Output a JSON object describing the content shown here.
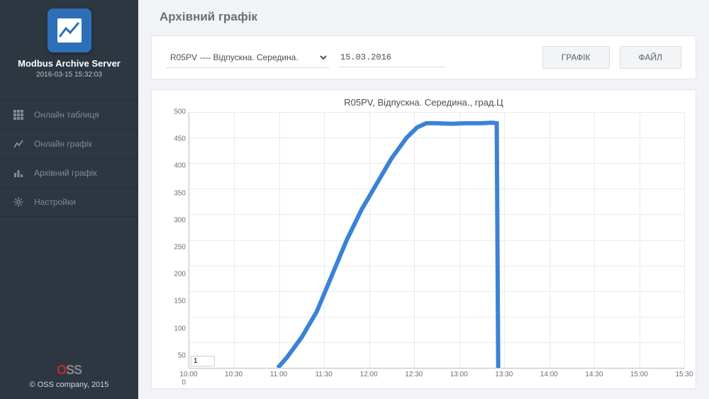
{
  "app": {
    "title": "Modbus Archive Server",
    "timestamp": "2016-03-15 15:32:03"
  },
  "sidebar": {
    "items": [
      {
        "label": "Онлайн таблиця",
        "icon": "grid-icon"
      },
      {
        "label": "Онлайн графік",
        "icon": "trend-icon"
      },
      {
        "label": "Архівний графік",
        "icon": "bars-icon"
      },
      {
        "label": "Настройки",
        "icon": "gear-icon"
      }
    ],
    "footer": "© OSS company, 2015"
  },
  "page": {
    "title": "Архівний графік"
  },
  "controls": {
    "sensor_selected": "R05PV ---- Відпускна. Середина.",
    "date": "15.03.2016",
    "btn_chart": "ГРАФІК",
    "btn_file": "ФАЙЛ"
  },
  "chart": {
    "title": "R05PV, Відпускна. Середина., град.Ц",
    "type": "line",
    "line_color": "#3b82d6",
    "line_width": 2,
    "grid_color": "#e8eaed",
    "axis_color": "#b8bec6",
    "tick_fontsize": 10,
    "tick_color": "#6a6f75",
    "background_color": "#ffffff",
    "x": {
      "min_minutes": 600,
      "max_minutes": 930,
      "ticks": [
        "10:00",
        "10:30",
        "11:00",
        "11:30",
        "12:00",
        "12:30",
        "13:00",
        "13:30",
        "14:00",
        "14:30",
        "15:00",
        "15:30"
      ]
    },
    "y": {
      "min": 0,
      "max": 500,
      "step": 50,
      "ticks": [
        0,
        50,
        100,
        150,
        200,
        250,
        300,
        350,
        400,
        450,
        500
      ]
    },
    "series": [
      {
        "t": 659,
        "v": 0
      },
      {
        "t": 665,
        "v": 20
      },
      {
        "t": 675,
        "v": 60
      },
      {
        "t": 685,
        "v": 110
      },
      {
        "t": 695,
        "v": 180
      },
      {
        "t": 705,
        "v": 250
      },
      {
        "t": 715,
        "v": 310
      },
      {
        "t": 725,
        "v": 360
      },
      {
        "t": 735,
        "v": 410
      },
      {
        "t": 745,
        "v": 450
      },
      {
        "t": 752,
        "v": 470
      },
      {
        "t": 758,
        "v": 478
      },
      {
        "t": 765,
        "v": 478
      },
      {
        "t": 775,
        "v": 477
      },
      {
        "t": 785,
        "v": 478
      },
      {
        "t": 795,
        "v": 478
      },
      {
        "t": 802,
        "v": 479
      },
      {
        "t": 805,
        "v": 478
      },
      {
        "t": 806,
        "v": 0
      }
    ],
    "page_value": "1"
  }
}
